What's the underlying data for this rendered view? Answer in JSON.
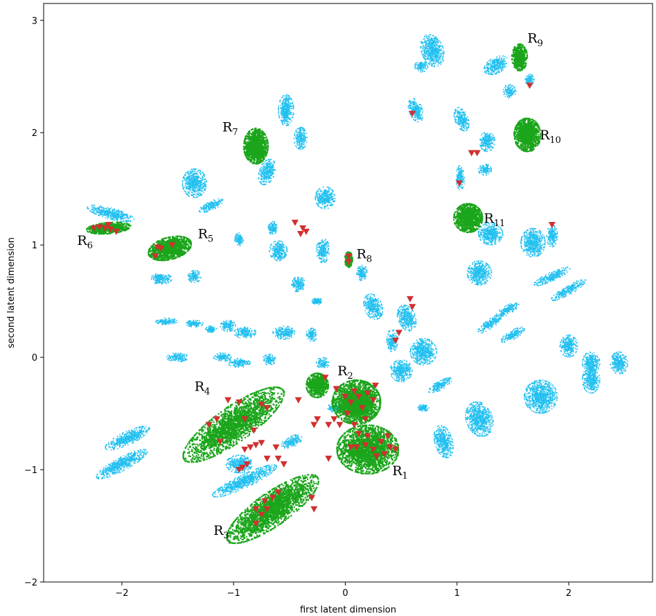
{
  "chart_data": {
    "type": "scatter",
    "title": "",
    "xlabel": "first latent dimension",
    "ylabel": "second latent dimension",
    "xlim": [
      -2.7,
      2.75
    ],
    "ylim": [
      -2.0,
      3.15
    ],
    "xticks": [
      "−2",
      "−1",
      "0",
      "1",
      "2"
    ],
    "xtick_values": [
      -2,
      -1,
      0,
      1,
      2
    ],
    "yticks": [
      "−2",
      "−1",
      "0",
      "1",
      "2",
      "3"
    ],
    "ytick_values": [
      -2,
      -1,
      0,
      1,
      2,
      3
    ],
    "grid": false,
    "colors": {
      "background_points": "#22c0f0",
      "region_points": "#1aa51a",
      "markers": "#d03030"
    },
    "background_clusters": [
      {
        "x": 0.78,
        "y": 2.73,
        "rx": 0.1,
        "ry": 0.15,
        "angle": 20
      },
      {
        "x": 0.68,
        "y": 2.59,
        "rx": 0.06,
        "ry": 0.05,
        "angle": 0
      },
      {
        "x": 0.63,
        "y": 2.2,
        "rx": 0.06,
        "ry": 0.11,
        "angle": 20
      },
      {
        "x": 1.35,
        "y": 2.6,
        "rx": 0.12,
        "ry": 0.07,
        "angle": 30
      },
      {
        "x": 1.47,
        "y": 2.37,
        "rx": 0.06,
        "ry": 0.06,
        "angle": 0
      },
      {
        "x": 1.65,
        "y": 2.47,
        "rx": 0.04,
        "ry": 0.05,
        "angle": 0
      },
      {
        "x": 1.04,
        "y": 2.12,
        "rx": 0.06,
        "ry": 0.11,
        "angle": 20
      },
      {
        "x": 1.27,
        "y": 1.92,
        "rx": 0.07,
        "ry": 0.09,
        "angle": 0
      },
      {
        "x": 1.03,
        "y": 1.6,
        "rx": 0.04,
        "ry": 0.11,
        "angle": 0
      },
      {
        "x": 1.25,
        "y": 1.67,
        "rx": 0.06,
        "ry": 0.05,
        "angle": 0
      },
      {
        "x": -0.53,
        "y": 2.2,
        "rx": 0.07,
        "ry": 0.14,
        "angle": 0
      },
      {
        "x": -0.4,
        "y": 1.95,
        "rx": 0.06,
        "ry": 0.1,
        "angle": 0
      },
      {
        "x": -0.7,
        "y": 1.65,
        "rx": 0.07,
        "ry": 0.12,
        "angle": -20
      },
      {
        "x": -1.35,
        "y": 1.55,
        "rx": 0.11,
        "ry": 0.13,
        "angle": 0
      },
      {
        "x": -1.2,
        "y": 1.35,
        "rx": 0.12,
        "ry": 0.04,
        "angle": 25
      },
      {
        "x": -2.1,
        "y": 1.28,
        "rx": 0.22,
        "ry": 0.05,
        "angle": -15
      },
      {
        "x": -0.18,
        "y": 1.42,
        "rx": 0.09,
        "ry": 0.1,
        "angle": 0
      },
      {
        "x": -0.95,
        "y": 1.05,
        "rx": 0.04,
        "ry": 0.06,
        "angle": 0
      },
      {
        "x": -0.65,
        "y": 1.15,
        "rx": 0.04,
        "ry": 0.06,
        "angle": 0
      },
      {
        "x": -0.6,
        "y": 0.95,
        "rx": 0.08,
        "ry": 0.09,
        "angle": 0
      },
      {
        "x": -0.2,
        "y": 0.95,
        "rx": 0.06,
        "ry": 0.11,
        "angle": 0
      },
      {
        "x": -0.42,
        "y": 0.65,
        "rx": 0.06,
        "ry": 0.07,
        "angle": 0
      },
      {
        "x": -0.25,
        "y": 0.5,
        "rx": 0.05,
        "ry": 0.03,
        "angle": 0
      },
      {
        "x": 0.15,
        "y": 0.75,
        "rx": 0.05,
        "ry": 0.07,
        "angle": 0
      },
      {
        "x": 0.25,
        "y": 0.45,
        "rx": 0.08,
        "ry": 0.12,
        "angle": 20
      },
      {
        "x": 0.55,
        "y": 0.35,
        "rx": 0.08,
        "ry": 0.12,
        "angle": 20
      },
      {
        "x": 0.42,
        "y": 0.15,
        "rx": 0.05,
        "ry": 0.1,
        "angle": 0
      },
      {
        "x": 0.7,
        "y": 0.05,
        "rx": 0.12,
        "ry": 0.12,
        "angle": 0
      },
      {
        "x": 0.5,
        "y": -0.12,
        "rx": 0.1,
        "ry": 0.1,
        "angle": 0
      },
      {
        "x": 0.85,
        "y": -0.25,
        "rx": 0.12,
        "ry": 0.04,
        "angle": 30
      },
      {
        "x": 0.7,
        "y": -0.45,
        "rx": 0.05,
        "ry": 0.03,
        "angle": 0
      },
      {
        "x": 1.2,
        "y": -0.55,
        "rx": 0.12,
        "ry": 0.16,
        "angle": 20
      },
      {
        "x": 0.88,
        "y": -0.75,
        "rx": 0.08,
        "ry": 0.15,
        "angle": 15
      },
      {
        "x": 1.3,
        "y": 1.1,
        "rx": 0.11,
        "ry": 0.1,
        "angle": 0
      },
      {
        "x": 1.2,
        "y": 0.75,
        "rx": 0.11,
        "ry": 0.11,
        "angle": 0
      },
      {
        "x": 1.68,
        "y": 1.02,
        "rx": 0.11,
        "ry": 0.13,
        "angle": 0
      },
      {
        "x": 1.85,
        "y": 1.08,
        "rx": 0.05,
        "ry": 0.1,
        "angle": 0
      },
      {
        "x": 1.85,
        "y": 0.72,
        "rx": 0.18,
        "ry": 0.04,
        "angle": 25
      },
      {
        "x": 2.0,
        "y": 0.6,
        "rx": 0.18,
        "ry": 0.04,
        "angle": 30
      },
      {
        "x": 1.45,
        "y": 0.42,
        "rx": 0.12,
        "ry": 0.04,
        "angle": 30
      },
      {
        "x": 1.3,
        "y": 0.3,
        "rx": 0.14,
        "ry": 0.04,
        "angle": 35
      },
      {
        "x": 1.5,
        "y": 0.2,
        "rx": 0.12,
        "ry": 0.04,
        "angle": 30
      },
      {
        "x": 2.0,
        "y": 0.1,
        "rx": 0.08,
        "ry": 0.1,
        "angle": 0
      },
      {
        "x": 2.2,
        "y": -0.05,
        "rx": 0.08,
        "ry": 0.1,
        "angle": 0
      },
      {
        "x": 2.45,
        "y": -0.05,
        "rx": 0.08,
        "ry": 0.1,
        "angle": 0
      },
      {
        "x": 1.75,
        "y": -0.35,
        "rx": 0.15,
        "ry": 0.15,
        "angle": 0
      },
      {
        "x": 2.2,
        "y": -0.2,
        "rx": 0.08,
        "ry": 0.12,
        "angle": 0
      },
      {
        "x": -1.65,
        "y": 0.7,
        "rx": 0.1,
        "ry": 0.05,
        "angle": 0
      },
      {
        "x": -1.35,
        "y": 0.72,
        "rx": 0.06,
        "ry": 0.06,
        "angle": 0
      },
      {
        "x": -1.6,
        "y": 0.32,
        "rx": 0.1,
        "ry": 0.03,
        "angle": 0
      },
      {
        "x": -1.35,
        "y": 0.3,
        "rx": 0.08,
        "ry": 0.03,
        "angle": 0
      },
      {
        "x": -1.2,
        "y": 0.25,
        "rx": 0.05,
        "ry": 0.03,
        "angle": 0
      },
      {
        "x": -1.05,
        "y": 0.28,
        "rx": 0.07,
        "ry": 0.05,
        "angle": 0
      },
      {
        "x": -0.9,
        "y": 0.22,
        "rx": 0.1,
        "ry": 0.05,
        "angle": 0
      },
      {
        "x": -0.55,
        "y": 0.22,
        "rx": 0.1,
        "ry": 0.06,
        "angle": 0
      },
      {
        "x": -0.3,
        "y": 0.2,
        "rx": 0.05,
        "ry": 0.06,
        "angle": 0
      },
      {
        "x": -1.5,
        "y": 0.0,
        "rx": 0.1,
        "ry": 0.04,
        "angle": 0
      },
      {
        "x": -1.1,
        "y": 0.0,
        "rx": 0.08,
        "ry": 0.04,
        "angle": 0
      },
      {
        "x": -0.95,
        "y": -0.05,
        "rx": 0.1,
        "ry": 0.04,
        "angle": 0
      },
      {
        "x": -0.68,
        "y": -0.02,
        "rx": 0.06,
        "ry": 0.05,
        "angle": 0
      },
      {
        "x": -0.2,
        "y": -0.05,
        "rx": 0.06,
        "ry": 0.05,
        "angle": 0
      },
      {
        "x": -1.95,
        "y": -0.72,
        "rx": 0.22,
        "ry": 0.06,
        "angle": 25
      },
      {
        "x": -2.0,
        "y": -0.95,
        "rx": 0.26,
        "ry": 0.06,
        "angle": 28
      },
      {
        "x": -0.95,
        "y": -0.95,
        "rx": 0.12,
        "ry": 0.08,
        "angle": 0
      },
      {
        "x": -0.9,
        "y": -1.1,
        "rx": 0.32,
        "ry": 0.06,
        "angle": 25
      },
      {
        "x": -0.48,
        "y": -0.75,
        "rx": 0.1,
        "ry": 0.05,
        "angle": 25
      },
      {
        "x": -0.1,
        "y": -0.45,
        "rx": 0.06,
        "ry": 0.04,
        "angle": 0
      }
    ],
    "region_clusters": [
      {
        "label": "R",
        "index": "1",
        "x": 0.2,
        "y": -0.82,
        "rx": 0.28,
        "ry": 0.22,
        "angle": 0
      },
      {
        "label": "R",
        "index": "2",
        "x": 0.1,
        "y": -0.4,
        "rx": 0.22,
        "ry": 0.2,
        "angle": 0
      },
      {
        "label": "",
        "index": "",
        "x": -0.25,
        "y": -0.25,
        "rx": 0.1,
        "ry": 0.11,
        "angle": 0
      },
      {
        "label": "R",
        "index": "3",
        "x": -0.65,
        "y": -1.35,
        "rx": 0.5,
        "ry": 0.15,
        "angle": 35
      },
      {
        "label": "R",
        "index": "4",
        "x": -1.0,
        "y": -0.6,
        "rx": 0.55,
        "ry": 0.16,
        "angle": 35
      },
      {
        "label": "R",
        "index": "5",
        "x": -1.57,
        "y": 0.97,
        "rx": 0.2,
        "ry": 0.1,
        "angle": 15
      },
      {
        "label": "R",
        "index": "6",
        "x": -2.12,
        "y": 1.15,
        "rx": 0.2,
        "ry": 0.05,
        "angle": 5
      },
      {
        "label": "R",
        "index": "7",
        "x": -0.8,
        "y": 1.88,
        "rx": 0.11,
        "ry": 0.16,
        "angle": 0
      },
      {
        "label": "R",
        "index": "8",
        "x": 0.03,
        "y": 0.87,
        "rx": 0.035,
        "ry": 0.07,
        "angle": 0
      },
      {
        "label": "R",
        "index": "9",
        "x": 1.56,
        "y": 2.67,
        "rx": 0.07,
        "ry": 0.12,
        "angle": 0
      },
      {
        "label": "R",
        "index": "10",
        "x": 1.63,
        "y": 1.98,
        "rx": 0.12,
        "ry": 0.15,
        "angle": 0
      },
      {
        "label": "R",
        "index": "11",
        "x": 1.1,
        "y": 1.24,
        "rx": 0.13,
        "ry": 0.13,
        "angle": 0
      }
    ],
    "region_labels": [
      {
        "base": "R",
        "sub": "1",
        "x": 0.42,
        "y": -1.05
      },
      {
        "base": "R",
        "sub": "2",
        "x": -0.07,
        "y": -0.16
      },
      {
        "base": "R",
        "sub": "3",
        "x": -1.18,
        "y": -1.58
      },
      {
        "base": "R",
        "sub": "4",
        "x": -1.35,
        "y": -0.3
      },
      {
        "base": "R",
        "sub": "5",
        "x": -1.32,
        "y": 1.06
      },
      {
        "base": "R",
        "sub": "6",
        "x": -2.4,
        "y": 1.0
      },
      {
        "base": "R",
        "sub": "7",
        "x": -1.1,
        "y": 2.01
      },
      {
        "base": "R",
        "sub": "8",
        "x": 0.1,
        "y": 0.88
      },
      {
        "base": "R",
        "sub": "9",
        "x": 1.63,
        "y": 2.8
      },
      {
        "base": "R",
        "sub": "10",
        "x": 1.74,
        "y": 1.94
      },
      {
        "base": "R",
        "sub": "11",
        "x": 1.24,
        "y": 1.2
      }
    ],
    "markers": [
      {
        "x": 0.18,
        "y": -0.78
      },
      {
        "x": 0.25,
        "y": -0.82
      },
      {
        "x": 0.1,
        "y": -0.8
      },
      {
        "x": 0.32,
        "y": -0.75
      },
      {
        "x": 0.4,
        "y": -0.8
      },
      {
        "x": 0.45,
        "y": -0.82
      },
      {
        "x": 0.2,
        "y": -0.7
      },
      {
        "x": 0.28,
        "y": -0.88
      },
      {
        "x": 0.05,
        "y": -0.8
      },
      {
        "x": 0.38,
        "y": -0.7
      },
      {
        "x": 0.12,
        "y": -0.68
      },
      {
        "x": 0.35,
        "y": -0.86
      },
      {
        "x": 0.08,
        "y": -0.3
      },
      {
        "x": 0.12,
        "y": -0.35
      },
      {
        "x": 0.2,
        "y": -0.32
      },
      {
        "x": 0.05,
        "y": -0.4
      },
      {
        "x": 0.15,
        "y": -0.45
      },
      {
        "x": 0.25,
        "y": -0.38
      },
      {
        "x": 0.02,
        "y": -0.5
      },
      {
        "x": 0.18,
        "y": -0.55
      },
      {
        "x": 0.08,
        "y": -0.6
      },
      {
        "x": -0.05,
        "y": -0.6
      },
      {
        "x": -0.15,
        "y": -0.6
      },
      {
        "x": 0.0,
        "y": -0.35
      },
      {
        "x": -0.08,
        "y": -0.28
      },
      {
        "x": 0.27,
        "y": -0.25
      },
      {
        "x": -0.18,
        "y": -0.18
      },
      {
        "x": -0.25,
        "y": -0.55
      },
      {
        "x": -0.28,
        "y": -0.6
      },
      {
        "x": -0.1,
        "y": -0.55
      },
      {
        "x": -0.85,
        "y": -0.8
      },
      {
        "x": -0.9,
        "y": -0.82
      },
      {
        "x": -0.8,
        "y": -0.78
      },
      {
        "x": -0.75,
        "y": -0.76
      },
      {
        "x": -0.95,
        "y": -1.0
      },
      {
        "x": -0.92,
        "y": -0.98
      },
      {
        "x": -0.88,
        "y": -0.95
      },
      {
        "x": -0.7,
        "y": -0.9
      },
      {
        "x": -0.6,
        "y": -0.9
      },
      {
        "x": -0.55,
        "y": -0.95
      },
      {
        "x": -0.62,
        "y": -0.8
      },
      {
        "x": -1.05,
        "y": -0.38
      },
      {
        "x": -0.95,
        "y": -0.4
      },
      {
        "x": -0.75,
        "y": -0.42
      },
      {
        "x": -0.7,
        "y": -0.45
      },
      {
        "x": -0.42,
        "y": -0.38
      },
      {
        "x": -0.9,
        "y": -0.55
      },
      {
        "x": -1.15,
        "y": -0.55
      },
      {
        "x": -1.22,
        "y": -0.6
      },
      {
        "x": -1.12,
        "y": -0.75
      },
      {
        "x": -0.82,
        "y": -0.65
      },
      {
        "x": -0.8,
        "y": -1.35
      },
      {
        "x": -0.75,
        "y": -1.4
      },
      {
        "x": -0.7,
        "y": -1.35
      },
      {
        "x": -0.65,
        "y": -1.25
      },
      {
        "x": -0.6,
        "y": -1.2
      },
      {
        "x": -0.72,
        "y": -1.28
      },
      {
        "x": -0.8,
        "y": -1.48
      },
      {
        "x": -0.3,
        "y": -1.25
      },
      {
        "x": -0.28,
        "y": -1.35
      },
      {
        "x": -0.15,
        "y": -0.9
      },
      {
        "x": -2.15,
        "y": 1.15
      },
      {
        "x": -2.2,
        "y": 1.16
      },
      {
        "x": -2.1,
        "y": 1.14
      },
      {
        "x": -2.05,
        "y": 1.12
      },
      {
        "x": -2.25,
        "y": 1.15
      },
      {
        "x": -2.12,
        "y": 1.18
      },
      {
        "x": -1.65,
        "y": 0.97
      },
      {
        "x": -1.55,
        "y": 1.0
      },
      {
        "x": -1.7,
        "y": 0.9
      },
      {
        "x": -1.68,
        "y": 0.98
      },
      {
        "x": -0.45,
        "y": 1.2
      },
      {
        "x": -0.38,
        "y": 1.15
      },
      {
        "x": -0.4,
        "y": 1.1
      },
      {
        "x": -0.35,
        "y": 1.12
      },
      {
        "x": 0.03,
        "y": 0.9
      },
      {
        "x": 0.03,
        "y": 0.85
      },
      {
        "x": 0.58,
        "y": 0.52
      },
      {
        "x": 0.6,
        "y": 0.45
      },
      {
        "x": 0.48,
        "y": 0.22
      },
      {
        "x": 0.45,
        "y": 0.15
      },
      {
        "x": 0.6,
        "y": 2.17
      },
      {
        "x": 1.65,
        "y": 2.42
      },
      {
        "x": 1.13,
        "y": 1.82
      },
      {
        "x": 1.18,
        "y": 1.82
      },
      {
        "x": 1.02,
        "y": 1.55
      },
      {
        "x": 1.85,
        "y": 1.18
      }
    ]
  }
}
